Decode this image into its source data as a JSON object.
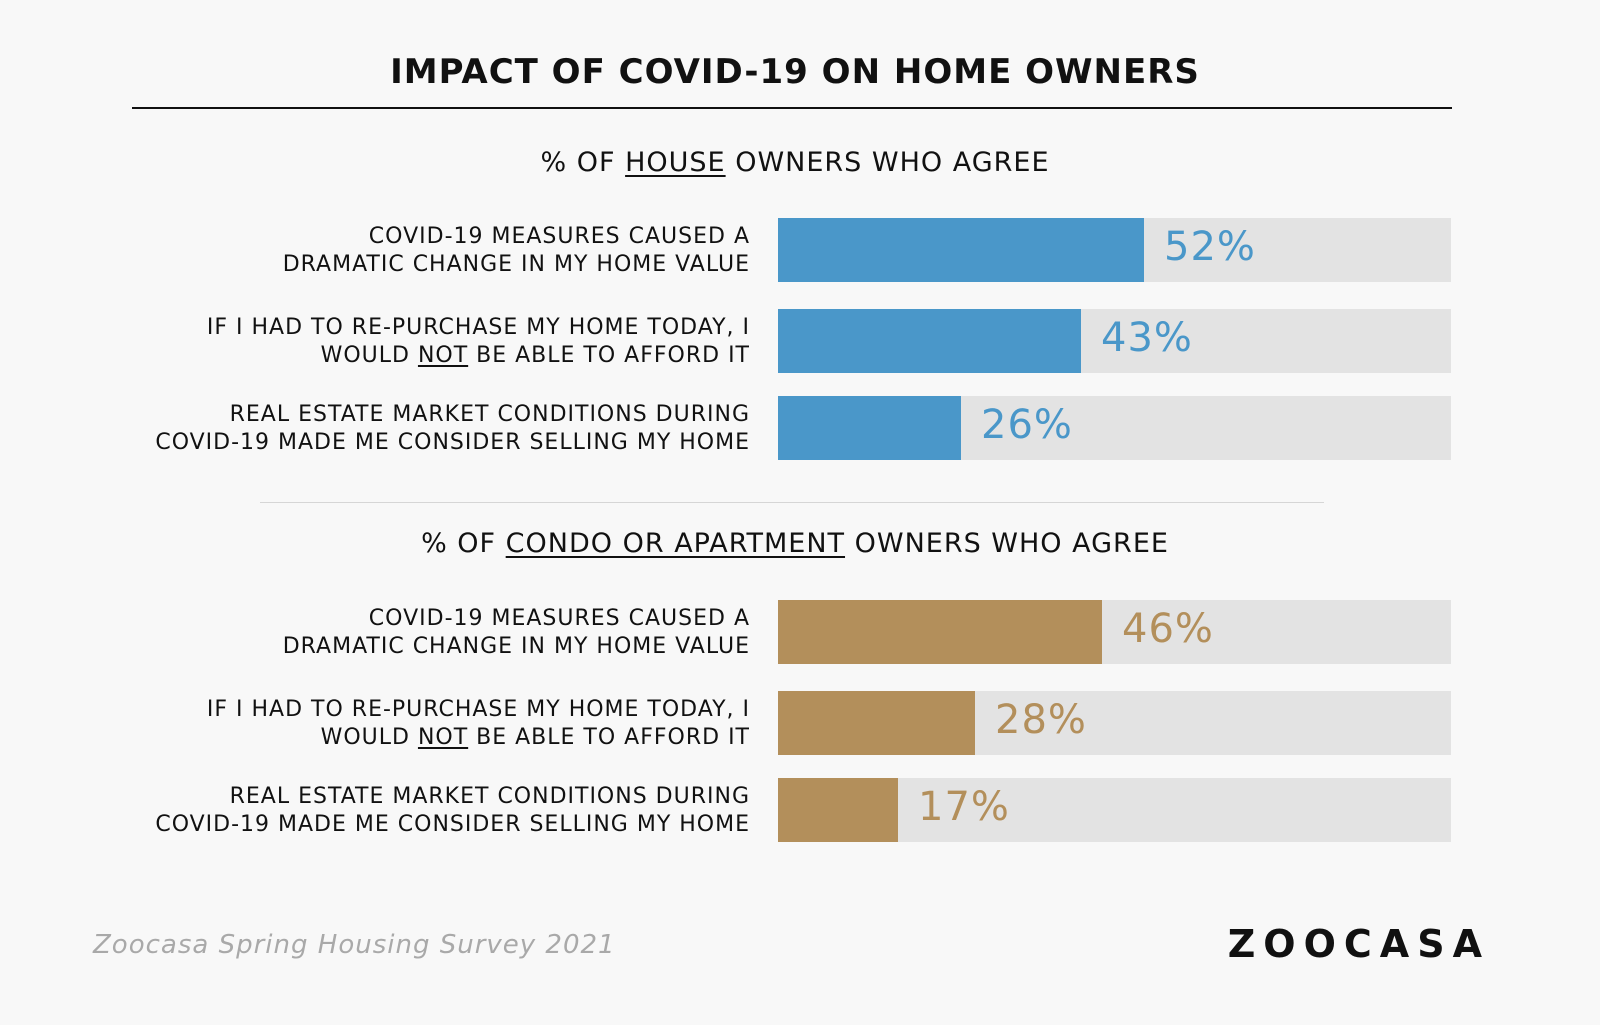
{
  "title": "IMPACT OF COVID-19 ON HOME OWNERS",
  "colors": {
    "house": "#4a97c9",
    "condo": "#b38f5b",
    "track": "#e3e3e3"
  },
  "source": "Zoocasa Spring Housing Survey 2021",
  "logo": "ZOOCASA",
  "chart_data": [
    {
      "type": "bar",
      "title_prefix": "% OF ",
      "title_emph": "HOUSE",
      "title_suffix": " OWNERS WHO AGREE",
      "categories": [
        {
          "line1": "COVID-19 MEASURES CAUSED A",
          "line2_pre": "DRAMATIC CHANGE IN MY HOME VALUE",
          "line2_emph": "",
          "line2_post": ""
        },
        {
          "line1": "IF I HAD TO RE-PURCHASE MY HOME TODAY, I",
          "line2_pre": "WOULD ",
          "line2_emph": "NOT",
          "line2_post": " BE ABLE TO AFFORD IT"
        },
        {
          "line1": "REAL ESTATE MARKET CONDITIONS DURING",
          "line2_pre": "COVID-19 MADE ME CONSIDER SELLING MY HOME",
          "line2_emph": "",
          "line2_post": ""
        }
      ],
      "values": [
        52,
        43,
        26
      ],
      "value_labels": [
        "52%",
        "43%",
        "26%"
      ],
      "ylim": [
        0,
        100
      ]
    },
    {
      "type": "bar",
      "title_prefix": "% OF ",
      "title_emph": "CONDO OR APARTMENT",
      "title_suffix": " OWNERS WHO AGREE",
      "categories": [
        {
          "line1": "COVID-19 MEASURES CAUSED A",
          "line2_pre": "DRAMATIC CHANGE IN MY HOME VALUE",
          "line2_emph": "",
          "line2_post": ""
        },
        {
          "line1": "IF I HAD TO RE-PURCHASE MY HOME TODAY, I",
          "line2_pre": "WOULD ",
          "line2_emph": "NOT",
          "line2_post": " BE ABLE TO AFFORD IT"
        },
        {
          "line1": "REAL ESTATE MARKET CONDITIONS DURING",
          "line2_pre": "COVID-19 MADE ME CONSIDER SELLING MY HOME",
          "line2_emph": "",
          "line2_post": ""
        }
      ],
      "values": [
        46,
        28,
        17
      ],
      "value_labels": [
        "46%",
        "28%",
        "17%"
      ],
      "ylim": [
        0,
        100
      ]
    }
  ]
}
